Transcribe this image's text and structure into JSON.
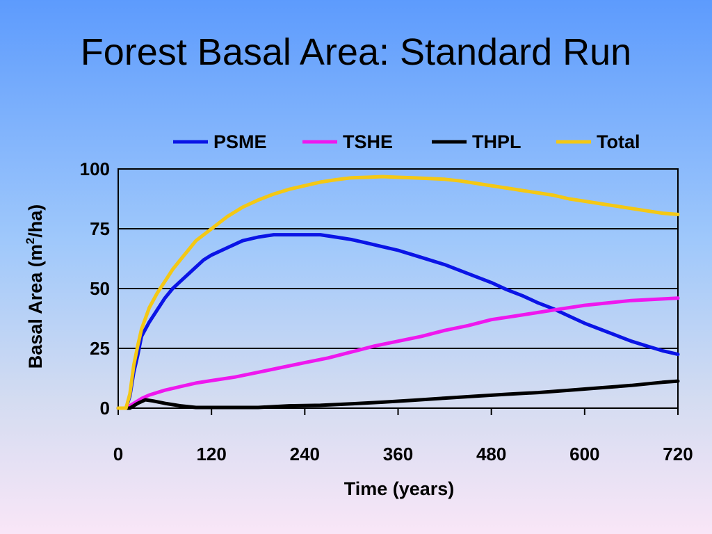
{
  "slide": {
    "title": "Forest Basal Area: Standard Run"
  },
  "chart_data": {
    "type": "line",
    "title": "",
    "xlabel": "Time (years)",
    "ylabel_main": "Basal Area (m",
    "ylabel_sup": "2",
    "ylabel_end": "/ha)",
    "xlim": [
      0,
      720
    ],
    "ylim": [
      0,
      100
    ],
    "xticks": [
      0,
      120,
      240,
      360,
      480,
      600,
      720
    ],
    "yticks": [
      0,
      25,
      50,
      75,
      100
    ],
    "grid": "horizontal",
    "legend_position": "top",
    "series": [
      {
        "name": "PSME",
        "color": "#0a14e6",
        "points": [
          [
            0,
            0
          ],
          [
            10,
            0
          ],
          [
            15,
            5
          ],
          [
            20,
            15
          ],
          [
            25,
            22
          ],
          [
            30,
            30
          ],
          [
            40,
            36
          ],
          [
            50,
            41
          ],
          [
            60,
            46
          ],
          [
            70,
            50
          ],
          [
            80,
            53
          ],
          [
            90,
            56
          ],
          [
            100,
            59
          ],
          [
            110,
            62
          ],
          [
            120,
            64
          ],
          [
            140,
            67
          ],
          [
            160,
            70
          ],
          [
            180,
            71.5
          ],
          [
            200,
            72.5
          ],
          [
            220,
            72.5
          ],
          [
            240,
            72.5
          ],
          [
            260,
            72.5
          ],
          [
            280,
            71.5
          ],
          [
            300,
            70.5
          ],
          [
            320,
            69
          ],
          [
            340,
            67.5
          ],
          [
            360,
            66
          ],
          [
            380,
            64
          ],
          [
            400,
            62
          ],
          [
            420,
            60
          ],
          [
            440,
            57.5
          ],
          [
            460,
            55
          ],
          [
            480,
            52.5
          ],
          [
            500,
            49.5
          ],
          [
            520,
            47
          ],
          [
            540,
            44
          ],
          [
            560,
            41.5
          ],
          [
            580,
            38.5
          ],
          [
            600,
            35.5
          ],
          [
            620,
            33
          ],
          [
            640,
            30.5
          ],
          [
            660,
            28
          ],
          [
            680,
            26
          ],
          [
            700,
            24
          ],
          [
            720,
            22.5
          ]
        ]
      },
      {
        "name": "TSHE",
        "color": "#ee18ee",
        "points": [
          [
            0,
            0
          ],
          [
            10,
            0
          ],
          [
            20,
            2
          ],
          [
            30,
            4
          ],
          [
            40,
            5.5
          ],
          [
            60,
            7.5
          ],
          [
            80,
            9
          ],
          [
            100,
            10.5
          ],
          [
            120,
            11.5
          ],
          [
            150,
            13
          ],
          [
            180,
            15
          ],
          [
            210,
            17
          ],
          [
            240,
            19
          ],
          [
            270,
            21
          ],
          [
            300,
            23.5
          ],
          [
            330,
            26
          ],
          [
            360,
            28
          ],
          [
            390,
            30
          ],
          [
            420,
            32.5
          ],
          [
            450,
            34.5
          ],
          [
            480,
            37
          ],
          [
            510,
            38.5
          ],
          [
            540,
            40
          ],
          [
            570,
            41.5
          ],
          [
            600,
            43
          ],
          [
            630,
            44
          ],
          [
            660,
            45
          ],
          [
            690,
            45.5
          ],
          [
            720,
            46
          ]
        ]
      },
      {
        "name": "THPL",
        "color": "#000000",
        "points": [
          [
            0,
            0
          ],
          [
            15,
            0
          ],
          [
            25,
            2
          ],
          [
            35,
            3.5
          ],
          [
            45,
            3
          ],
          [
            60,
            2
          ],
          [
            80,
            1
          ],
          [
            100,
            0.3
          ],
          [
            140,
            0.3
          ],
          [
            180,
            0.3
          ],
          [
            220,
            1
          ],
          [
            260,
            1.2
          ],
          [
            300,
            1.8
          ],
          [
            340,
            2.5
          ],
          [
            380,
            3.3
          ],
          [
            420,
            4.2
          ],
          [
            460,
            5
          ],
          [
            500,
            5.8
          ],
          [
            540,
            6.5
          ],
          [
            580,
            7.5
          ],
          [
            620,
            8.5
          ],
          [
            660,
            9.5
          ],
          [
            700,
            10.8
          ],
          [
            720,
            11.3
          ]
        ]
      },
      {
        "name": "Total",
        "color": "#f4c814",
        "points": [
          [
            0,
            0
          ],
          [
            10,
            0
          ],
          [
            15,
            6
          ],
          [
            20,
            18
          ],
          [
            25,
            26
          ],
          [
            30,
            33
          ],
          [
            40,
            42
          ],
          [
            50,
            48
          ],
          [
            60,
            53
          ],
          [
            70,
            58
          ],
          [
            80,
            62
          ],
          [
            90,
            66
          ],
          [
            100,
            70
          ],
          [
            120,
            75
          ],
          [
            140,
            80
          ],
          [
            160,
            84
          ],
          [
            180,
            87
          ],
          [
            200,
            89.5
          ],
          [
            220,
            91.5
          ],
          [
            240,
            93
          ],
          [
            260,
            94.5
          ],
          [
            280,
            95.5
          ],
          [
            300,
            96.3
          ],
          [
            320,
            96.5
          ],
          [
            340,
            96.8
          ],
          [
            360,
            96.5
          ],
          [
            380,
            96.3
          ],
          [
            400,
            96
          ],
          [
            420,
            95.7
          ],
          [
            440,
            95
          ],
          [
            460,
            94
          ],
          [
            480,
            93
          ],
          [
            500,
            92
          ],
          [
            520,
            91
          ],
          [
            540,
            90
          ],
          [
            560,
            89
          ],
          [
            580,
            87.5
          ],
          [
            600,
            86.5
          ],
          [
            620,
            85.5
          ],
          [
            640,
            84.5
          ],
          [
            660,
            83.5
          ],
          [
            680,
            82.5
          ],
          [
            700,
            81.5
          ],
          [
            720,
            81
          ]
        ]
      }
    ]
  }
}
